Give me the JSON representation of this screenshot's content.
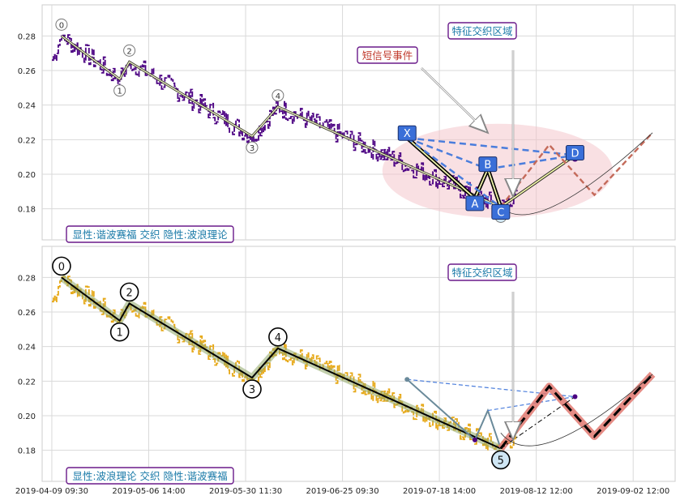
{
  "chart_data": [
    {
      "type": "line",
      "panel": "top",
      "grid": true,
      "ylim": [
        0.162,
        0.298
      ],
      "yticks": [
        "0.28",
        "0.26",
        "0.24",
        "0.22",
        "0.20",
        "0.18"
      ],
      "ytick_values": [
        0.28,
        0.26,
        0.24,
        0.22,
        0.2,
        0.18
      ],
      "price_color": "#4B0082",
      "zigzag_points": [
        {
          "label": "0",
          "x": 3,
          "y": 0.28
        },
        {
          "label": "1",
          "x": 21,
          "y": 0.255
        },
        {
          "label": "2",
          "x": 24,
          "y": 0.265
        },
        {
          "label": "3",
          "x": 62,
          "y": 0.222
        },
        {
          "label": "4",
          "x": 70,
          "y": 0.239
        },
        {
          "label": "5",
          "x": 139,
          "y": 0.181
        }
      ],
      "harmonic_points": [
        {
          "label": "X",
          "x": 110,
          "y": 0.221
        },
        {
          "label": "A",
          "x": 131,
          "y": 0.186
        },
        {
          "label": "B",
          "x": 135,
          "y": 0.203
        },
        {
          "label": "C",
          "x": 139,
          "y": 0.181
        },
        {
          "label": "D",
          "x": 162,
          "y": 0.211
        }
      ],
      "annotations": {
        "feature_zone": "特征交织区域",
        "short_signal": "短信号事件",
        "legend_box": "显性:谐波赛福 交织 隐性:波浪理论"
      }
    },
    {
      "type": "line",
      "panel": "bottom",
      "grid": true,
      "ylim": [
        0.162,
        0.298
      ],
      "yticks": [
        "0.28",
        "0.26",
        "0.24",
        "0.22",
        "0.20",
        "0.18"
      ],
      "ytick_values": [
        0.28,
        0.26,
        0.24,
        0.22,
        0.2,
        0.18
      ],
      "price_color": "#E6A817",
      "zigzag_points": [
        {
          "label": "0",
          "x": 3,
          "y": 0.28
        },
        {
          "label": "1",
          "x": 21,
          "y": 0.255
        },
        {
          "label": "2",
          "x": 24,
          "y": 0.265
        },
        {
          "label": "3",
          "x": 62,
          "y": 0.222
        },
        {
          "label": "4",
          "x": 70,
          "y": 0.239
        },
        {
          "label": "5",
          "x": 139,
          "y": 0.181
        }
      ],
      "projection": [
        {
          "x": 139,
          "y": 0.181
        },
        {
          "x": 154,
          "y": 0.217
        },
        {
          "x": 168,
          "y": 0.188
        },
        {
          "x": 186,
          "y": 0.224
        }
      ],
      "annotations": {
        "feature_zone": "特征交织区域",
        "legend_box": "显性:波浪理论 交织 隐性:谐波赛福"
      }
    }
  ],
  "x_axis": {
    "xlim": [
      -3,
      193
    ],
    "ticks": [
      {
        "x": 0,
        "label": "2019-04-09 09:30"
      },
      {
        "x": 30,
        "label": "2019-05-06 14:00"
      },
      {
        "x": 60,
        "label": "2019-05-30 11:30"
      },
      {
        "x": 90,
        "label": "2019-06-25 09:30"
      },
      {
        "x": 120,
        "label": "2019-07-18 14:00"
      },
      {
        "x": 150,
        "label": "2019-08-12 12:00"
      },
      {
        "x": 180,
        "label": "2019-09-02 12:00"
      }
    ]
  }
}
